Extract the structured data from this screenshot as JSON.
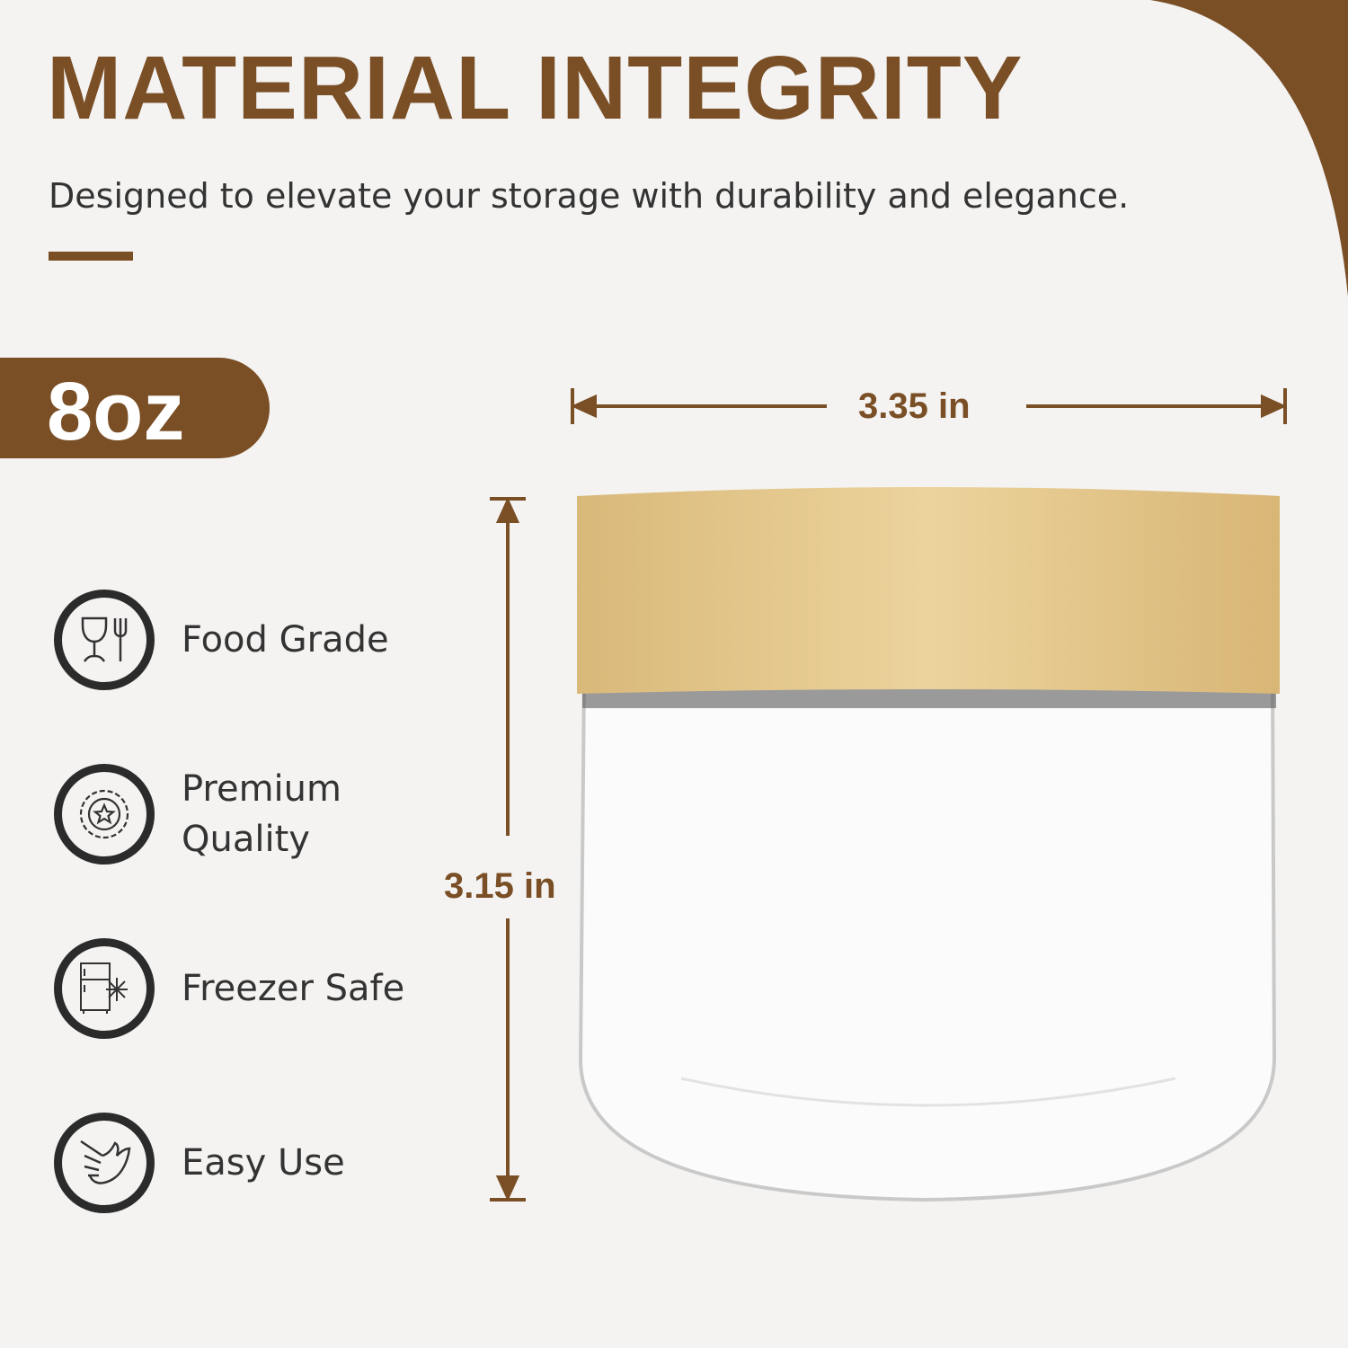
{
  "header": {
    "title": "MATERIAL INTEGRITY",
    "subtitle": "Designed to elevate your storage with durability and elegance."
  },
  "badge": {
    "size": "8oz"
  },
  "features": [
    {
      "label": "Food Grade",
      "icon": "glass-fork-icon"
    },
    {
      "label": "Premium Quality",
      "icon": "star-seal-icon"
    },
    {
      "label": "Freezer Safe",
      "icon": "fridge-snowflake-icon"
    },
    {
      "label": "Easy Use",
      "icon": "hand-icon"
    }
  ],
  "dimensions": {
    "width": "3.35 in",
    "height": "3.15 in"
  },
  "colors": {
    "accent": "#7a4f26",
    "background": "#f4f3f2",
    "lid": "#e2c387"
  }
}
